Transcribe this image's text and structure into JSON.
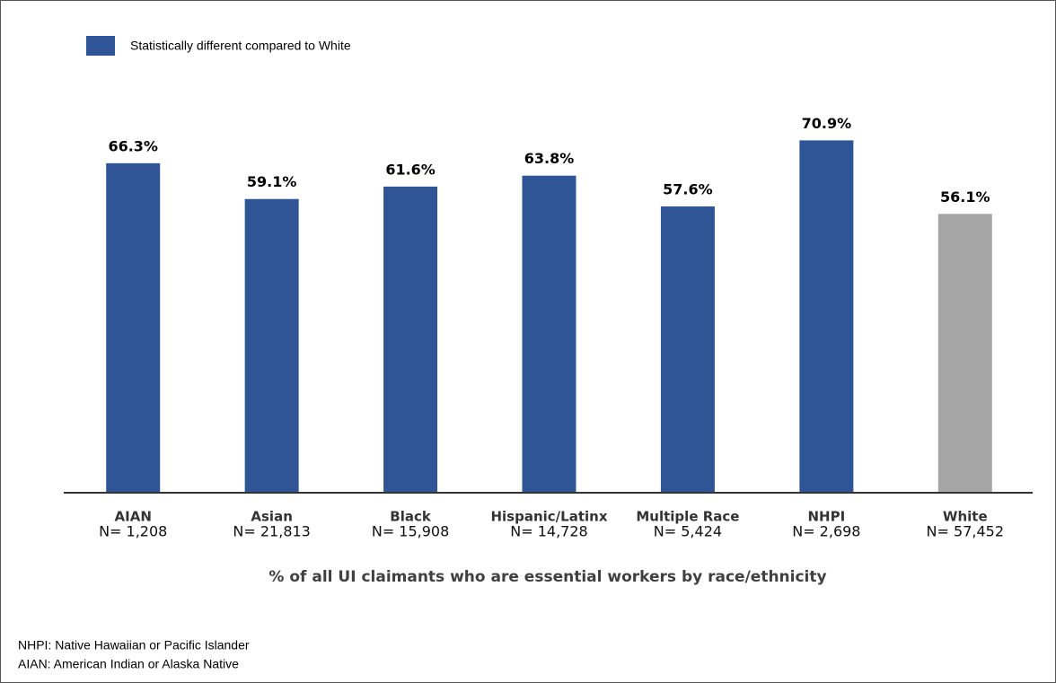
{
  "chart_data": {
    "type": "bar",
    "legend": [
      {
        "name": "Statistically different compared to White",
        "color": "#2f5597"
      }
    ],
    "categories": [
      "AIAN",
      "Asian",
      "Black",
      "Hispanic/Latinx",
      "Multiple Race",
      "NHPI",
      "White"
    ],
    "sample_sizes": [
      "N= 1,208",
      "N= 21,813",
      "N= 15,908",
      "N= 14,728",
      "N= 5,424",
      "N= 2,698",
      "N= 57,452"
    ],
    "values": [
      66.3,
      59.1,
      61.6,
      63.8,
      57.6,
      70.9,
      56.1
    ],
    "value_labels": [
      "66.3%",
      "59.1%",
      "61.6%",
      "63.8%",
      "57.6%",
      "70.9%",
      "56.1%"
    ],
    "colors": [
      "#2f5597",
      "#2f5597",
      "#2f5597",
      "#2f5597",
      "#2f5597",
      "#2f5597",
      "#a6a6a6"
    ],
    "ylim": [
      0,
      80
    ],
    "x_label": "% of all UI claimants who are essential workers by race/ethnicity",
    "footnotes": [
      "NHPI: Native Hawaiian or Pacific Islander",
      "AIAN: American Indian or Alaska Native"
    ]
  }
}
